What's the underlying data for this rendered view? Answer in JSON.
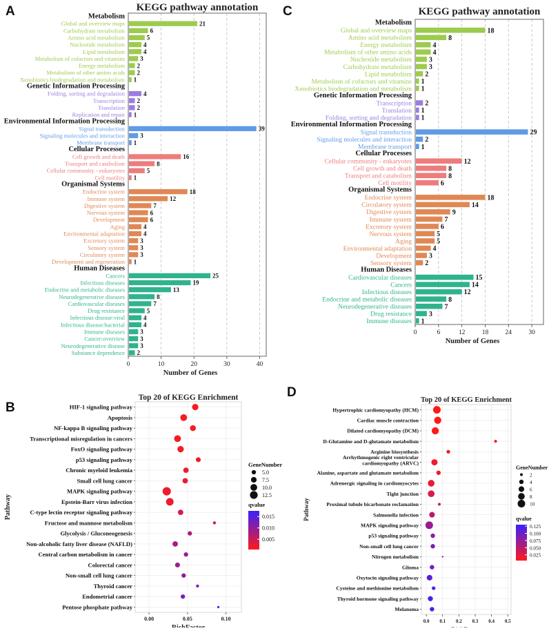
{
  "colors": {
    "Metabolism": "#9dcb4f",
    "Genetic Information Processing": "#9b7de0",
    "Environmental Information Processing": "#5f9be6",
    "Cellular Processes": "#ee7c7c",
    "Organismal Systems": "#e08855",
    "Human Diseases": "#2fb38e",
    "q_low": "#ff1a1a",
    "q_high": "#3b20ff"
  },
  "chart_data": [
    {
      "panel": "A",
      "type": "bar",
      "orientation": "horizontal",
      "title": "KEGG pathway annotation",
      "xlabel": "Number of Genes",
      "xlim": [
        0,
        42
      ],
      "xticks": [
        0,
        10,
        20,
        30,
        40
      ],
      "groups": [
        {
          "name": "Metabolism",
          "items": [
            [
              "Global and overview maps",
              21
            ],
            [
              "Carbohydrate metabolism",
              6
            ],
            [
              "Amino acid metabolism",
              5
            ],
            [
              "Nucleotide metabolism",
              4
            ],
            [
              "Lipid metabolism",
              4
            ],
            [
              "Metabolism of cofactors and vitamins",
              3
            ],
            [
              "Energy metabolism",
              2
            ],
            [
              "Metabolism of other amino acids",
              2
            ],
            [
              "Xenobiotics biodegradation and metabolism",
              1
            ]
          ]
        },
        {
          "name": "Genetic Information Processing",
          "items": [
            [
              "Folding, sorting and degradation",
              4
            ],
            [
              "Transcription",
              2
            ],
            [
              "Translation",
              2
            ],
            [
              "Replication and repair",
              1
            ]
          ]
        },
        {
          "name": "Environmental Information Processing",
          "items": [
            [
              "Signal transduction",
              39
            ],
            [
              "Signaling molecules and interaction",
              3
            ],
            [
              "Membrane transport",
              1
            ]
          ]
        },
        {
          "name": "Cellular Processes",
          "items": [
            [
              "Cell growth and death",
              16
            ],
            [
              "Transport and catabolism",
              8
            ],
            [
              "Cellular community - eukaryotes",
              5
            ],
            [
              "Cell motility",
              1
            ]
          ]
        },
        {
          "name": "Organismal Systems",
          "items": [
            [
              "Endocrine system",
              18
            ],
            [
              "Immune system",
              12
            ],
            [
              "Digestive system",
              7
            ],
            [
              "Nervous system",
              6
            ],
            [
              "Development",
              6
            ],
            [
              "Aging",
              4
            ],
            [
              "Environmental adaptation",
              4
            ],
            [
              "Excretory system",
              3
            ],
            [
              "Sensory system",
              3
            ],
            [
              "Circulatory system",
              3
            ],
            [
              "Development and regeneration",
              1
            ]
          ]
        },
        {
          "name": "Human Diseases",
          "items": [
            [
              "Cancers",
              25
            ],
            [
              "Infectious diseases",
              19
            ],
            [
              "Endocrine and metabolic diseases",
              13
            ],
            [
              "Neurodegenerative diseases",
              8
            ],
            [
              "Cardiovascular diseases",
              7
            ],
            [
              "Drug resistance",
              5
            ],
            [
              "Infectious disease:viral",
              4
            ],
            [
              "Infectious disease:bacterial",
              4
            ],
            [
              "Immune diseases",
              3
            ],
            [
              "Cancer:overview",
              3
            ],
            [
              "Neurodegenerative disease",
              3
            ],
            [
              "Substance dependence",
              2
            ]
          ]
        }
      ]
    },
    {
      "panel": "C",
      "type": "bar",
      "orientation": "horizontal",
      "title": "KEGG pathway annotation",
      "xlabel": "Number of Genes",
      "xlim": [
        0,
        33
      ],
      "xticks": [
        0,
        6,
        12,
        18,
        24,
        30
      ],
      "groups": [
        {
          "name": "Metabolism",
          "items": [
            [
              "Global and overview maps",
              18
            ],
            [
              "Amino acid metabolism",
              8
            ],
            [
              "Energy metabolism",
              4
            ],
            [
              "Metabolism of other amino acids",
              4
            ],
            [
              "Nucleotide metabolism",
              3
            ],
            [
              "Carbohydrate metabolism",
              3
            ],
            [
              "Lipid metabolism",
              2
            ],
            [
              "Metabolism of cofactors and vitamins",
              1
            ],
            [
              "Xenobiotics biodegradation and metabolism",
              1
            ]
          ]
        },
        {
          "name": "Genetic Information Processing",
          "items": [
            [
              "Transcription",
              2
            ],
            [
              "Translation",
              1
            ],
            [
              "Folding, sorting and degradation",
              1
            ]
          ]
        },
        {
          "name": "Environmental Information Processing",
          "items": [
            [
              "Signal transduction",
              29
            ],
            [
              "Signaling molecules and interaction",
              2
            ],
            [
              "Membrane transport",
              1
            ]
          ]
        },
        {
          "name": "Cellular Processes",
          "items": [
            [
              "Cellular community - eukaryotes",
              12
            ],
            [
              "Cell growth and death",
              8
            ],
            [
              "Transport and catabolism",
              8
            ],
            [
              "Cell motility",
              6
            ]
          ]
        },
        {
          "name": "Organismal Systems",
          "items": [
            [
              "Endocrine system",
              18
            ],
            [
              "Circulatory system",
              14
            ],
            [
              "Digestive system",
              9
            ],
            [
              "Immune system",
              7
            ],
            [
              "Excretory system",
              6
            ],
            [
              "Nervous system",
              5
            ],
            [
              "Aging",
              5
            ],
            [
              "Environmental adaptation",
              4
            ],
            [
              "Development",
              3
            ],
            [
              "Sensory system",
              2
            ]
          ]
        },
        {
          "name": "Human Diseases",
          "items": [
            [
              "Cardiovascular diseases",
              15
            ],
            [
              "Cancers",
              14
            ],
            [
              "Infectious diseases",
              12
            ],
            [
              "Endocrine and metabolic diseases",
              8
            ],
            [
              "Neurodegenerative diseases",
              7
            ],
            [
              "Drug resistance",
              3
            ],
            [
              "Immune diseases",
              1
            ]
          ]
        }
      ]
    },
    {
      "panel": "B",
      "type": "scatter",
      "title": "Top 20 of KEGG Enrichment",
      "xlabel": "RichFactor",
      "ylabel": "Pathway",
      "xlim": [
        -0.018,
        0.12
      ],
      "xticks": [
        0.0,
        0.05,
        0.1
      ],
      "xtick_labels": [
        "0.00",
        "0.05",
        "0.10"
      ],
      "size_legend_title": "GeneNumber",
      "size_legend": [
        5.0,
        7.5,
        10.0,
        12.5
      ],
      "size_legend_labels": [
        "5.0",
        "7.5",
        "10.0",
        "12.5"
      ],
      "size_range": [
        1,
        14
      ],
      "color_legend_title": "qvalue",
      "color_range": [
        0.0005,
        0.0175
      ],
      "color_ticks": [
        0.005,
        0.01,
        0.015
      ],
      "color_tick_labels": [
        "0.005",
        "0.010",
        "0.015"
      ],
      "points": [
        {
          "pathway": "HIF-1 signaling pathway",
          "rich": 0.06,
          "genes": 9,
          "q": 0.001
        },
        {
          "pathway": "Apoptosis",
          "rich": 0.045,
          "genes": 10,
          "q": 0.001
        },
        {
          "pathway": "NF-kappa B signaling pathway",
          "rich": 0.057,
          "genes": 8,
          "q": 0.001
        },
        {
          "pathway": "Transcriptional misregulation in cancers",
          "rich": 0.037,
          "genes": 10,
          "q": 0.001
        },
        {
          "pathway": "FoxO signaling pathway",
          "rich": 0.041,
          "genes": 9,
          "q": 0.001
        },
        {
          "pathway": "p53 signaling pathway",
          "rich": 0.064,
          "genes": 6,
          "q": 0.002
        },
        {
          "pathway": "Chronic myeloid leukemia",
          "rich": 0.048,
          "genes": 7,
          "q": 0.002
        },
        {
          "pathway": "Small cell lung cancer",
          "rich": 0.047,
          "genes": 7,
          "q": 0.002
        },
        {
          "pathway": "MAPK signaling pathway",
          "rich": 0.023,
          "genes": 14,
          "q": 0.002
        },
        {
          "pathway": "Epstein-Barr virus infection",
          "rich": 0.027,
          "genes": 12,
          "q": 0.002
        },
        {
          "pathway": "C-type lectin receptor signaling pathway",
          "rich": 0.041,
          "genes": 7,
          "q": 0.004
        },
        {
          "pathway": "Fructose and mannose metabolism",
          "rich": 0.085,
          "genes": 3,
          "q": 0.005
        },
        {
          "pathway": "Glycolysis / Gluconeogenesis",
          "rich": 0.053,
          "genes": 5,
          "q": 0.008
        },
        {
          "pathway": "Non-alcoholic fatty liver disease (NAFLD)",
          "rich": 0.034,
          "genes": 7,
          "q": 0.008
        },
        {
          "pathway": "Central carbon metabolism in cancer",
          "rich": 0.048,
          "genes": 5,
          "q": 0.009
        },
        {
          "pathway": "Colorectal cancer",
          "rich": 0.037,
          "genes": 6,
          "q": 0.009
        },
        {
          "pathway": "Non-small cell lung cancer",
          "rich": 0.045,
          "genes": 5,
          "q": 0.01
        },
        {
          "pathway": "Thyroid cancer",
          "rich": 0.063,
          "genes": 3,
          "q": 0.011
        },
        {
          "pathway": "Endometrial cancer",
          "rich": 0.044,
          "genes": 5,
          "q": 0.012
        },
        {
          "pathway": "Pentose phosphate pathway",
          "rich": 0.09,
          "genes": 2,
          "q": 0.017
        }
      ]
    },
    {
      "panel": "D",
      "type": "scatter",
      "title": "Top 20 of KEGG Enrichment",
      "xlabel": "RichFactor",
      "ylabel": "Pathway",
      "xlim": [
        -0.03,
        0.52
      ],
      "xticks": [
        0.0,
        0.1,
        0.2,
        0.3,
        0.4,
        0.5
      ],
      "xtick_labels": [
        "0.0",
        "0.1",
        "0.2",
        "0.3",
        "0.4",
        "0.5"
      ],
      "size_legend_title": "GeneNumber",
      "size_legend": [
        2,
        4,
        6,
        8,
        10
      ],
      "size_legend_labels": [
        "2",
        "4",
        "6",
        "8",
        "10"
      ],
      "size_range": [
        1,
        11
      ],
      "color_legend_title": "qvalue",
      "color_range": [
        0.005,
        0.13
      ],
      "color_ticks": [
        0.025,
        0.05,
        0.075,
        0.1,
        0.125
      ],
      "color_tick_labels": [
        "0.025",
        "0.050",
        "0.075",
        "0.100",
        "0.125"
      ],
      "points": [
        {
          "pathway": "Hypertrophic cardiomyopathy (HCM)",
          "rich": 0.065,
          "genes": 10,
          "q": 0.005
        },
        {
          "pathway": "Cardiac muscle contraction",
          "rich": 0.07,
          "genes": 9,
          "q": 0.005
        },
        {
          "pathway": "Dilated cardiomyopathy (DCM)",
          "rich": 0.055,
          "genes": 9,
          "q": 0.006
        },
        {
          "pathway": "D-Glutamine and D-glutamate metabolism",
          "rich": 0.425,
          "genes": 2,
          "q": 0.008
        },
        {
          "pathway": "Arginine biosynthesis",
          "rich": 0.135,
          "genes": 3,
          "q": 0.012
        },
        {
          "pathway": "Arrhythmogenic right ventricular cardiomyopathy (ARVC)",
          "rich": 0.05,
          "genes": 7,
          "q": 0.015
        },
        {
          "pathway": "Alanine, aspartate and glutamate metabolism",
          "rich": 0.075,
          "genes": 4,
          "q": 0.02
        },
        {
          "pathway": "Adrenergic signaling in cardiomyocytes",
          "rich": 0.03,
          "genes": 8,
          "q": 0.02
        },
        {
          "pathway": "Tight junction",
          "rich": 0.03,
          "genes": 8,
          "q": 0.03
        },
        {
          "pathway": "Proximal tubule bicarbonate reclamation",
          "rich": 0.08,
          "genes": 2,
          "q": 0.04
        },
        {
          "pathway": "Salmonella infection",
          "rich": 0.035,
          "genes": 6,
          "q": 0.05
        },
        {
          "pathway": "MAPK signaling pathway",
          "rich": 0.018,
          "genes": 10,
          "q": 0.07
        },
        {
          "pathway": "p53 signaling pathway",
          "rich": 0.04,
          "genes": 4,
          "q": 0.08
        },
        {
          "pathway": "Non-small cell lung cancer",
          "rich": 0.04,
          "genes": 4,
          "q": 0.09
        },
        {
          "pathway": "Nitrogen metabolism",
          "rich": 0.1,
          "genes": 1,
          "q": 0.095
        },
        {
          "pathway": "Glioma",
          "rich": 0.035,
          "genes": 4,
          "q": 0.1
        },
        {
          "pathway": "Oxytocin signaling pathway",
          "rich": 0.02,
          "genes": 6,
          "q": 0.11
        },
        {
          "pathway": "Cysteine and methionine metabolism",
          "rich": 0.045,
          "genes": 3,
          "q": 0.115
        },
        {
          "pathway": "Thyroid hormone signaling pathway",
          "rich": 0.025,
          "genes": 5,
          "q": 0.12
        },
        {
          "pathway": "Melanoma",
          "rich": 0.035,
          "genes": 4,
          "q": 0.125
        }
      ]
    }
  ],
  "panel_labels": [
    "A",
    "C",
    "B",
    "D"
  ]
}
